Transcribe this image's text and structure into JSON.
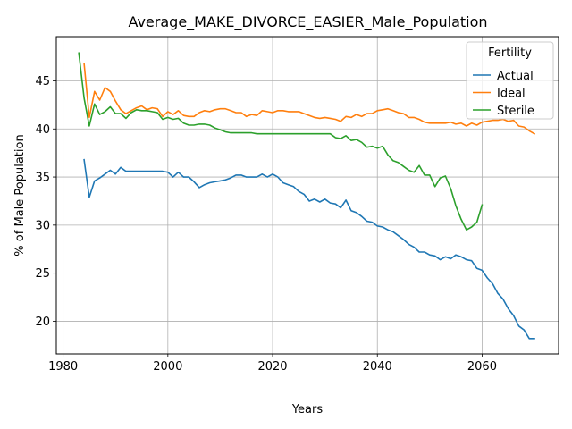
{
  "chart_data": {
    "type": "line",
    "title": "Average_MAKE_DIVORCE_EASIER_Male_Population",
    "xlabel": "Years",
    "ylabel": "% of Male Population",
    "xlim": [
      1978.7,
      2074.6
    ],
    "ylim": [
      16.6,
      49.6
    ],
    "xticks": [
      1980,
      2000,
      2020,
      2040,
      2060
    ],
    "yticks": [
      20,
      25,
      30,
      35,
      40,
      45
    ],
    "grid": true,
    "legend": {
      "title": "Fertility",
      "position": "top-right"
    },
    "series": [
      {
        "name": "Actual",
        "color": "#1f77b4",
        "x": [
          1984,
          1985,
          1986,
          1987,
          1988,
          1989,
          1990,
          1991,
          1992,
          1993,
          1994,
          1995,
          1996,
          1997,
          1998,
          1999,
          2000,
          2001,
          2002,
          2003,
          2004,
          2005,
          2006,
          2007,
          2008,
          2009,
          2010,
          2011,
          2012,
          2013,
          2014,
          2015,
          2016,
          2017,
          2018,
          2019,
          2020,
          2021,
          2022,
          2023,
          2024,
          2025,
          2026,
          2027,
          2028,
          2029,
          2030,
          2031,
          2032,
          2033,
          2034,
          2035,
          2036,
          2037,
          2038,
          2039,
          2040,
          2041,
          2042,
          2043,
          2044,
          2045,
          2046,
          2047,
          2048,
          2049,
          2050,
          2051,
          2052,
          2053,
          2054,
          2055,
          2056,
          2057,
          2058,
          2059,
          2060,
          2061,
          2062,
          2063,
          2064,
          2065,
          2066,
          2067,
          2068,
          2069,
          2070
        ],
        "values": [
          36.8,
          32.9,
          34.6,
          34.9,
          35.3,
          35.7,
          35.3,
          36.0,
          35.6,
          35.6,
          35.6,
          35.6,
          35.6,
          35.6,
          35.6,
          35.6,
          35.5,
          35.0,
          35.5,
          35.0,
          35.0,
          34.5,
          33.9,
          34.2,
          34.4,
          34.5,
          34.6,
          34.7,
          34.9,
          35.2,
          35.2,
          35.0,
          35.0,
          35.0,
          35.3,
          35.0,
          35.3,
          35.0,
          34.4,
          34.2,
          34.0,
          33.5,
          33.2,
          32.5,
          32.7,
          32.4,
          32.7,
          32.3,
          32.2,
          31.8,
          32.6,
          31.5,
          31.3,
          30.9,
          30.4,
          30.3,
          29.9,
          29.8,
          29.5,
          29.3,
          28.9,
          28.5,
          28.0,
          27.7,
          27.2,
          27.2,
          26.9,
          26.8,
          26.4,
          26.7,
          26.5,
          26.9,
          26.7,
          26.4,
          26.3,
          25.5,
          25.3,
          24.5,
          23.9,
          22.9,
          22.3,
          21.3,
          20.6,
          19.5,
          19.1,
          18.2,
          18.2
        ]
      },
      {
        "name": "Ideal",
        "color": "#ff7f0e",
        "x": [
          1984,
          1985,
          1986,
          1987,
          1988,
          1989,
          1990,
          1991,
          1992,
          1993,
          1994,
          1995,
          1996,
          1997,
          1998,
          1999,
          2000,
          2001,
          2002,
          2003,
          2004,
          2005,
          2006,
          2007,
          2008,
          2009,
          2010,
          2011,
          2012,
          2013,
          2014,
          2015,
          2016,
          2017,
          2018,
          2019,
          2020,
          2021,
          2022,
          2023,
          2024,
          2025,
          2026,
          2027,
          2028,
          2029,
          2030,
          2031,
          2032,
          2033,
          2034,
          2035,
          2036,
          2037,
          2038,
          2039,
          2040,
          2041,
          2042,
          2043,
          2044,
          2045,
          2046,
          2047,
          2048,
          2049,
          2050,
          2051,
          2052,
          2053,
          2054,
          2055,
          2056,
          2057,
          2058,
          2059,
          2060,
          2061,
          2062,
          2063,
          2064,
          2065,
          2066,
          2067,
          2068,
          2069,
          2070
        ],
        "values": [
          46.8,
          41.2,
          43.9,
          43.0,
          44.3,
          43.9,
          42.9,
          42.0,
          41.6,
          41.9,
          42.2,
          42.4,
          42.0,
          42.2,
          42.1,
          41.3,
          41.8,
          41.5,
          41.9,
          41.4,
          41.3,
          41.3,
          41.7,
          41.9,
          41.8,
          42.0,
          42.1,
          42.1,
          41.9,
          41.7,
          41.7,
          41.3,
          41.5,
          41.4,
          41.9,
          41.8,
          41.7,
          41.9,
          41.9,
          41.8,
          41.8,
          41.8,
          41.6,
          41.4,
          41.2,
          41.1,
          41.2,
          41.1,
          41.0,
          40.8,
          41.3,
          41.2,
          41.5,
          41.3,
          41.6,
          41.6,
          41.9,
          42.0,
          42.1,
          41.9,
          41.7,
          41.6,
          41.2,
          41.2,
          41.0,
          40.7,
          40.6,
          40.6,
          40.6,
          40.6,
          40.7,
          40.5,
          40.6,
          40.3,
          40.6,
          40.4,
          40.7,
          40.8,
          40.9,
          40.9,
          41.0,
          40.8,
          40.9,
          40.3,
          40.2,
          39.8,
          39.5
        ]
      },
      {
        "name": "Sterile",
        "color": "#2ca02c",
        "x": [
          1983,
          1984,
          1985,
          1986,
          1987,
          1988,
          1989,
          1990,
          1991,
          1992,
          1993,
          1994,
          1995,
          1996,
          1997,
          1998,
          1999,
          2000,
          2001,
          2002,
          2003,
          2004,
          2005,
          2006,
          2007,
          2008,
          2009,
          2010,
          2011,
          2012,
          2013,
          2014,
          2015,
          2016,
          2017,
          2018,
          2019,
          2020,
          2021,
          2022,
          2023,
          2024,
          2025,
          2026,
          2027,
          2028,
          2029,
          2030,
          2031,
          2032,
          2033,
          2034,
          2035,
          2036,
          2037,
          2038,
          2039,
          2040,
          2041,
          2042,
          2043,
          2044,
          2045,
          2046,
          2047,
          2048,
          2049,
          2050,
          2051,
          2052,
          2053,
          2054,
          2055,
          2056,
          2057,
          2058,
          2059,
          2060
        ],
        "values": [
          47.9,
          43.2,
          40.3,
          42.6,
          41.5,
          41.8,
          42.3,
          41.6,
          41.6,
          41.1,
          41.7,
          42.0,
          41.9,
          41.9,
          41.8,
          41.7,
          41.0,
          41.2,
          41.0,
          41.1,
          40.6,
          40.4,
          40.4,
          40.5,
          40.5,
          40.4,
          40.1,
          39.9,
          39.7,
          39.6,
          39.6,
          39.6,
          39.6,
          39.6,
          39.5,
          39.5,
          39.5,
          39.5,
          39.5,
          39.5,
          39.5,
          39.5,
          39.5,
          39.5,
          39.5,
          39.5,
          39.5,
          39.5,
          39.5,
          39.1,
          39.0,
          39.3,
          38.8,
          38.9,
          38.6,
          38.1,
          38.2,
          38.0,
          38.2,
          37.3,
          36.7,
          36.5,
          36.1,
          35.7,
          35.5,
          36.2,
          35.2,
          35.2,
          34.0,
          34.9,
          35.1,
          33.8,
          32.0,
          30.6,
          29.5,
          29.8,
          30.3,
          32.1
        ]
      }
    ]
  }
}
